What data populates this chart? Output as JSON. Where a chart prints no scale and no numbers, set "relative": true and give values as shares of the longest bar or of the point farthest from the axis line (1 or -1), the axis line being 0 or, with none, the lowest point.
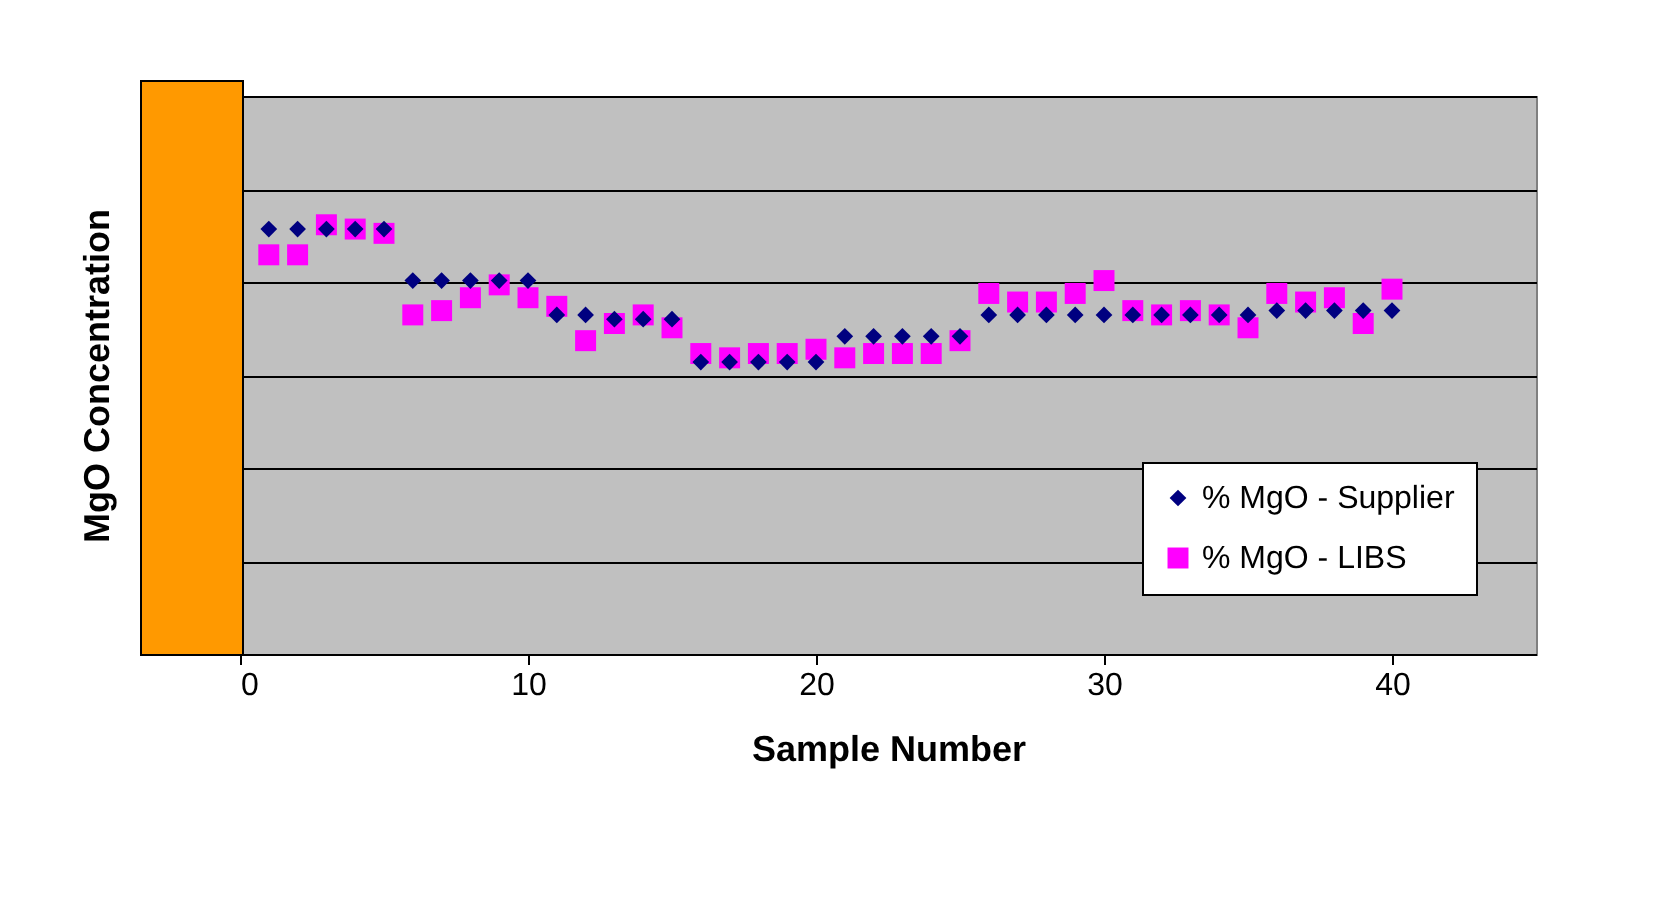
{
  "chart_data": {
    "type": "scatter",
    "xlabel": "Sample Number",
    "ylabel": "MgO Concentration",
    "relative": true,
    "x": [
      1,
      2,
      3,
      4,
      5,
      6,
      7,
      8,
      9,
      10,
      11,
      12,
      13,
      14,
      15,
      16,
      17,
      18,
      19,
      20,
      21,
      22,
      23,
      24,
      25,
      26,
      27,
      28,
      29,
      30,
      31,
      32,
      33,
      34,
      35,
      36,
      37,
      38,
      39,
      40
    ],
    "xlim": [
      0,
      45
    ],
    "xticks": [
      0,
      10,
      20,
      30,
      40
    ],
    "grid": "y",
    "legend": "bottom right",
    "series": [
      {
        "name": "% MgO - Supplier",
        "color": "#000080",
        "marker": "diamond",
        "values": [
          0.99,
          0.99,
          0.99,
          0.99,
          0.99,
          0.87,
          0.87,
          0.87,
          0.87,
          0.87,
          0.79,
          0.79,
          0.78,
          0.78,
          0.78,
          0.68,
          0.68,
          0.68,
          0.68,
          0.68,
          0.74,
          0.74,
          0.74,
          0.74,
          0.74,
          0.79,
          0.79,
          0.79,
          0.79,
          0.79,
          0.79,
          0.79,
          0.79,
          0.79,
          0.79,
          0.8,
          0.8,
          0.8,
          0.8,
          0.8
        ]
      },
      {
        "name": "% MgO - LIBS",
        "color": "#ff00ff",
        "marker": "square",
        "values": [
          0.93,
          0.93,
          1.0,
          0.99,
          0.98,
          0.79,
          0.8,
          0.83,
          0.86,
          0.83,
          0.81,
          0.73,
          0.77,
          0.79,
          0.76,
          0.7,
          0.69,
          0.7,
          0.7,
          0.71,
          0.69,
          0.7,
          0.7,
          0.7,
          0.73,
          0.84,
          0.82,
          0.82,
          0.84,
          0.87,
          0.8,
          0.79,
          0.8,
          0.79,
          0.76,
          0.84,
          0.82,
          0.83,
          0.77,
          0.85
        ]
      }
    ]
  }
}
